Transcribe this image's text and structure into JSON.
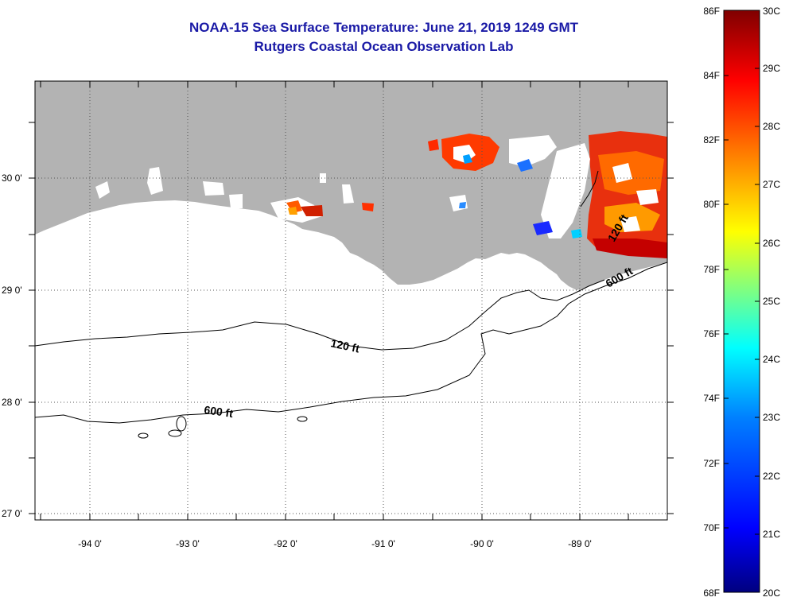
{
  "title": {
    "line1": "NOAA-15 Sea Surface Temperature:  June 21, 2019 1249 GMT",
    "line2": "Rutgers Coastal Ocean Observation Lab"
  },
  "map": {
    "lon_ticks": [
      "-94 0'",
      "-93 0'",
      "-92 0'",
      "-91 0'",
      "-90 0'",
      "-89 0'"
    ],
    "lat_ticks": [
      "30 0'",
      "29 0'",
      "28 0'",
      "27 0'"
    ],
    "contours": [
      {
        "label": "120 ft",
        "depth_ft": 120
      },
      {
        "label": "600 ft",
        "depth_ft": 600
      },
      {
        "label": "600 ft",
        "depth_ft": 600
      },
      {
        "label": "120 ft",
        "depth_ft": 120
      }
    ],
    "land_color": "#b3b3b3"
  },
  "colorbar": {
    "fahrenheit": [
      "86F",
      "84F",
      "82F",
      "80F",
      "78F",
      "76F",
      "74F",
      "72F",
      "70F",
      "68F"
    ],
    "celsius": [
      "30C",
      "29C",
      "28C",
      "27C",
      "26C",
      "25C",
      "24C",
      "23C",
      "22C",
      "21C",
      "20C"
    ],
    "stops": [
      "#00007f",
      "#0000ff",
      "#0080ff",
      "#00ffff",
      "#80ff80",
      "#ffff00",
      "#ff8000",
      "#ff0000",
      "#7f0000"
    ]
  }
}
